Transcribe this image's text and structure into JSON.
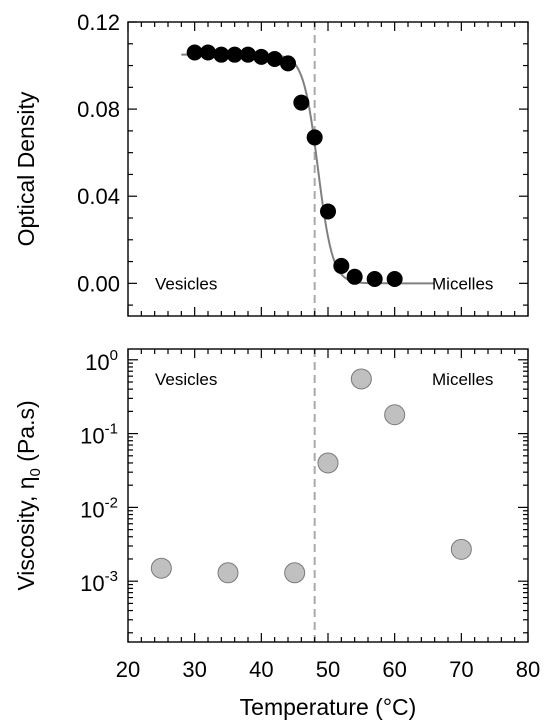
{
  "chart_data": [
    {
      "type": "scatter",
      "title": "",
      "xlabel": "",
      "ylabel": "Optical Density",
      "xlim": [
        20,
        80
      ],
      "ylim": [
        -0.015,
        0.12
      ],
      "y_ticks": [
        0.0,
        0.04,
        0.08,
        0.12
      ],
      "y_tick_labels": [
        "0.00",
        "0.04",
        "0.08",
        "0.12"
      ],
      "x_major_ticks": [
        20,
        30,
        40,
        50,
        60,
        70,
        80
      ],
      "grid": false,
      "series": [
        {
          "marker": "circle",
          "color": "#000000",
          "x": [
            30,
            32,
            34,
            36,
            38,
            40,
            42,
            44,
            46,
            48,
            50,
            52,
            54,
            57,
            60
          ],
          "y": [
            0.106,
            0.106,
            0.105,
            0.105,
            0.105,
            0.104,
            0.103,
            0.101,
            0.083,
            0.067,
            0.033,
            0.008,
            0.003,
            0.002,
            0.002
          ]
        },
        {
          "type": "line",
          "color": "#808080",
          "fit": {
            "top": 0.105,
            "bottom": 0.0,
            "midpoint": 48.5,
            "width": 1.1,
            "x_start": 28,
            "x_end": 66
          }
        }
      ],
      "reference_line": {
        "x": 48,
        "style": "dashed",
        "color": "#aaaaaa"
      },
      "annotations": [
        {
          "text": "Vesicles",
          "position": "bottom-left"
        },
        {
          "text": "Micelles",
          "position": "bottom-right"
        }
      ]
    },
    {
      "type": "scatter",
      "title": "",
      "xlabel": "Temperature (°C)",
      "ylabel": "Viscosity, η0 (Pa.s)",
      "ylabel_parts": {
        "main": "Viscosity, η",
        "sub": "0",
        "unit": " (Pa.s)"
      },
      "xlim": [
        20,
        80
      ],
      "ylim": [
        0.00015,
        1.4
      ],
      "y_scale": "log",
      "y_ticks": [
        0.001,
        0.01,
        0.1,
        1
      ],
      "y_tick_labels": [
        {
          "base": "10",
          "exp": "-3"
        },
        {
          "base": "10",
          "exp": "-2"
        },
        {
          "base": "10",
          "exp": "-1"
        },
        {
          "base": "10",
          "exp": "0"
        }
      ],
      "x_ticks": [
        20,
        30,
        40,
        50,
        60,
        70,
        80
      ],
      "x_tick_labels": [
        "20",
        "30",
        "40",
        "50",
        "60",
        "70",
        "80"
      ],
      "grid": false,
      "series": [
        {
          "marker": "circle",
          "color": "#c0c0c0",
          "x": [
            25,
            35,
            45,
            50,
            55,
            60,
            70
          ],
          "y": [
            0.0015,
            0.0013,
            0.0013,
            0.04,
            0.55,
            0.18,
            0.0027
          ]
        }
      ],
      "reference_line": {
        "x": 48,
        "style": "dashed",
        "color": "#aaaaaa"
      },
      "annotations": [
        {
          "text": "Vesicles",
          "position": "top-left"
        },
        {
          "text": "Micelles",
          "position": "top-right"
        }
      ]
    }
  ]
}
